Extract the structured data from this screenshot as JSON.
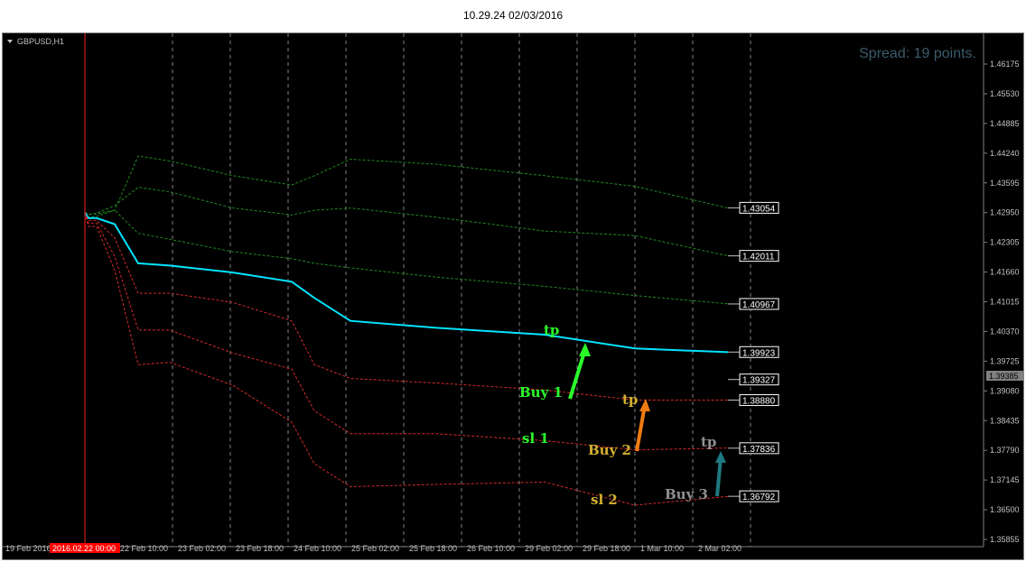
{
  "window": {
    "title": "10.29.24 02/03/2016"
  },
  "chart": {
    "symbol": "GBPUSD,H1",
    "spread_text": "Spread: 19 points.",
    "current_time_label": "2016.02.22 00:00",
    "current_price_label": "1.39385",
    "colors": {
      "background": "#000000",
      "main_line": "#00e5ff",
      "upper_bands": "#1f8a1f",
      "lower_bands": "#d42a2a",
      "vline": "#ff2020",
      "grid": "#808080"
    }
  },
  "chart_data": {
    "type": "line",
    "x_ticks": [
      "19 Feb 2016",
      "22 Feb 10:00",
      "23 Feb 02:00",
      "23 Feb 18:00",
      "24 Feb 10:00",
      "25 Feb 02:00",
      "25 Feb 18:00",
      "26 Feb 10:00",
      "29 Feb 02:00",
      "29 Feb 18:00",
      "1 Mar 10:00",
      "2 Mar 02:00"
    ],
    "y_ticks": [
      "1.46175",
      "1.45530",
      "1.44885",
      "1.44240",
      "1.43595",
      "1.42950",
      "1.42305",
      "1.41660",
      "1.41015",
      "1.40370",
      "1.39725",
      "1.39080",
      "1.38435",
      "1.37790",
      "1.37145",
      "1.36500",
      "1.35855"
    ],
    "ylim": [
      1.35855,
      1.4682
    ],
    "level_labels": [
      "1.43054",
      "1.42011",
      "1.40967",
      "1.39923",
      "1.39327",
      "1.38880",
      "1.37836",
      "1.36792"
    ],
    "annotations": {
      "tp1": "tp",
      "buy1": "Buy 1",
      "sl1": "sl 1",
      "tp2": "tp",
      "buy2": "Buy 2",
      "sl2": "sl 2",
      "tp3": "tp",
      "buy3": "Buy 3"
    },
    "x": [
      0,
      1,
      2,
      3,
      4,
      5,
      6,
      7,
      8,
      9,
      10,
      11,
      12,
      13
    ],
    "series": [
      {
        "values": [
          1.4295,
          1.4285,
          1.4287,
          1.43,
          1.4418,
          1.4407,
          1.4375,
          1.4355,
          1.4375,
          1.4411,
          1.44,
          1.4375,
          1.4352,
          1.4305
        ]
      },
      {
        "values": [
          1.4295,
          1.429,
          1.4294,
          1.431,
          1.435,
          1.434,
          1.4305,
          1.429,
          1.43,
          1.4305,
          1.4285,
          1.4255,
          1.4245,
          1.4201
        ]
      },
      {
        "values": [
          1.4295,
          1.4292,
          1.4292,
          1.43,
          1.425,
          1.4237,
          1.421,
          1.4195,
          1.4185,
          1.4175,
          1.4155,
          1.4135,
          1.4115,
          1.4097
        ]
      },
      {
        "values": [
          1.4295,
          1.4283,
          1.4283,
          1.427,
          1.4185,
          1.418,
          1.4165,
          1.4145,
          1.411,
          1.406,
          1.4045,
          1.403,
          1.4,
          1.3992
        ]
      },
      {
        "values": [
          1.4295,
          1.4278,
          1.4278,
          1.424,
          1.412,
          1.412,
          1.41,
          1.406,
          1.3965,
          1.3935,
          1.3925,
          1.391,
          1.3888,
          1.3888
        ]
      },
      {
        "values": [
          1.4295,
          1.4272,
          1.4272,
          1.42,
          1.404,
          1.404,
          1.399,
          1.3955,
          1.3865,
          1.3815,
          1.3815,
          1.38,
          1.378,
          1.3784
        ]
      },
      {
        "values": [
          1.4295,
          1.4265,
          1.4265,
          1.417,
          1.3965,
          1.397,
          1.392,
          1.384,
          1.375,
          1.37,
          1.3705,
          1.371,
          1.366,
          1.3679
        ]
      }
    ]
  }
}
